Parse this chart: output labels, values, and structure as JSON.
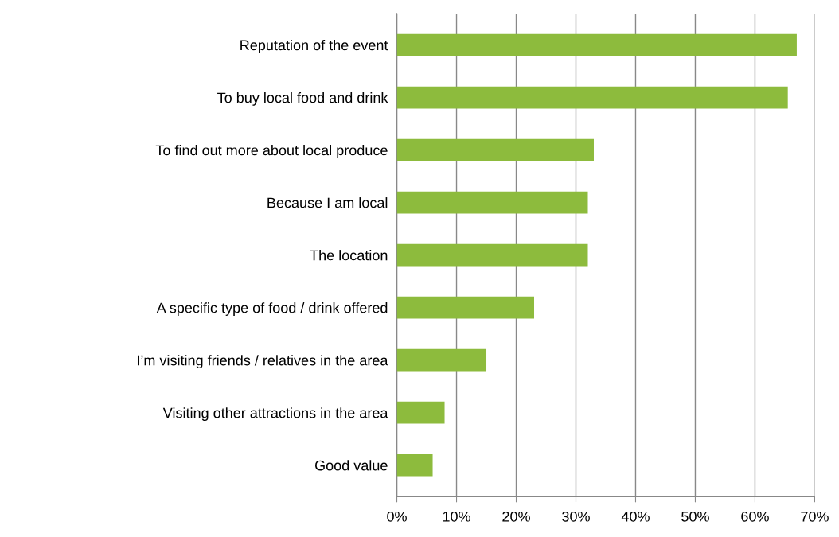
{
  "chart_data": {
    "type": "bar",
    "orientation": "horizontal",
    "categories": [
      "Reputation of the event",
      "To buy local food and drink",
      "To find out more about local produce",
      "Because I am local",
      "The location",
      "A specific type of food / drink offered",
      "I’m visiting friends / relatives in the area",
      "Visiting other attractions in the area",
      "Good value"
    ],
    "values": [
      67,
      65.5,
      33,
      32,
      32,
      23,
      15,
      8,
      6
    ],
    "color": "#8dbb3d",
    "xlim": [
      0,
      70
    ],
    "xticks": [
      {
        "value": 0,
        "label": "0%"
      },
      {
        "value": 10,
        "label": "10%"
      },
      {
        "value": 20,
        "label": "20%"
      },
      {
        "value": 30,
        "label": "30%"
      },
      {
        "value": 40,
        "label": "40%"
      },
      {
        "value": 50,
        "label": "50%"
      },
      {
        "value": 60,
        "label": "60%"
      },
      {
        "value": 70,
        "label": "70%"
      }
    ],
    "grid": "x"
  }
}
